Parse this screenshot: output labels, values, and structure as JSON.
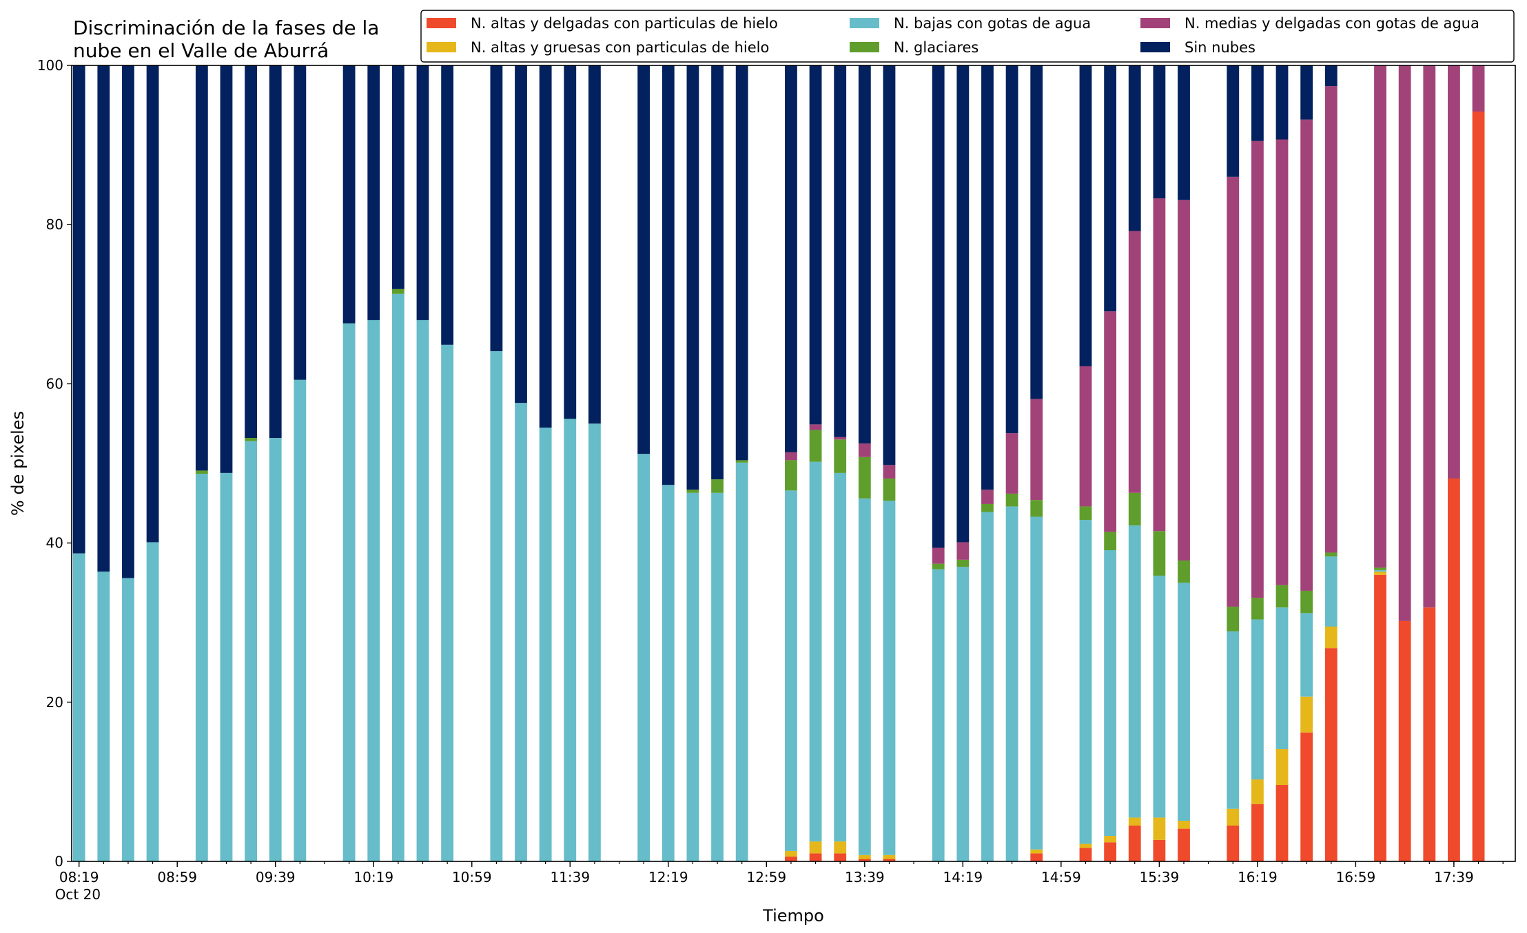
{
  "chart_data": {
    "type": "bar",
    "stacked": true,
    "title_lines": [
      "Discriminación de la fases de la",
      "nube en el Valle de Aburrá"
    ],
    "xlabel": "Tiempo",
    "ylabel": "% de pixeles",
    "ylim": [
      0,
      100
    ],
    "yticks": [
      0,
      20,
      40,
      60,
      80,
      100
    ],
    "x_range": [
      "08:16",
      "18:04"
    ],
    "xtick_labels": [
      {
        "time": "08:19",
        "label": "08:19",
        "sublabel": "Oct 20"
      },
      {
        "time": "08:59",
        "label": "08:59"
      },
      {
        "time": "09:39",
        "label": "09:39"
      },
      {
        "time": "10:19",
        "label": "10:19"
      },
      {
        "time": "10:59",
        "label": "10:59"
      },
      {
        "time": "11:39",
        "label": "11:39"
      },
      {
        "time": "12:19",
        "label": "12:19"
      },
      {
        "time": "12:59",
        "label": "12:59"
      },
      {
        "time": "13:39",
        "label": "13:39"
      },
      {
        "time": "14:19",
        "label": "14:19"
      },
      {
        "time": "14:59",
        "label": "14:59"
      },
      {
        "time": "15:39",
        "label": "15:39"
      },
      {
        "time": "16:19",
        "label": "16:19"
      },
      {
        "time": "16:59",
        "label": "16:59"
      },
      {
        "time": "17:39",
        "label": "17:39"
      }
    ],
    "minor_tick_interval_minutes": 10,
    "grid": false,
    "legend": {
      "placement": "top-right",
      "columns": 3
    },
    "x": [
      "08:19",
      "08:29",
      "08:39",
      "08:49",
      "08:59",
      "09:09",
      "09:19",
      "09:29",
      "09:39",
      "09:49",
      "09:59",
      "10:09",
      "10:19",
      "10:29",
      "10:39",
      "10:49",
      "10:59",
      "11:09",
      "11:19",
      "11:29",
      "11:39",
      "11:49",
      "11:59",
      "12:09",
      "12:19",
      "12:29",
      "12:39",
      "12:49",
      "12:59",
      "13:09",
      "13:19",
      "13:29",
      "13:39",
      "13:49",
      "13:59",
      "14:09",
      "14:19",
      "14:29",
      "14:39",
      "14:49",
      "14:59",
      "15:09",
      "15:19",
      "15:29",
      "15:39",
      "15:49",
      "15:59",
      "16:09",
      "16:19",
      "16:29",
      "16:39",
      "16:49",
      "16:59",
      "17:09",
      "17:19",
      "17:29",
      "17:39",
      "17:49"
    ],
    "series": [
      {
        "name": "N. altas y delgadas con particulas de hielo",
        "color": "#ef4a2b",
        "values": [
          null,
          null,
          null,
          null,
          null,
          null,
          null,
          null,
          null,
          null,
          null,
          null,
          null,
          null,
          null,
          null,
          null,
          null,
          null,
          null,
          null,
          null,
          null,
          null,
          null,
          null,
          null,
          null,
          null,
          0.6,
          1.0,
          1.0,
          0.3,
          0.3,
          null,
          null,
          null,
          null,
          null,
          1.0,
          null,
          1.7,
          2.4,
          4.5,
          2.7,
          4.1,
          null,
          4.5,
          7.2,
          9.6,
          16.2,
          26.8,
          null,
          36.0,
          30.2,
          31.9,
          48.1,
          94.2
        ]
      },
      {
        "name": "N. altas y gruesas con particulas de hielo",
        "color": "#e5b71a",
        "values": [
          null,
          null,
          null,
          null,
          null,
          null,
          null,
          null,
          null,
          null,
          null,
          null,
          null,
          null,
          null,
          null,
          null,
          null,
          null,
          null,
          null,
          null,
          null,
          null,
          null,
          null,
          null,
          null,
          null,
          0.7,
          1.5,
          1.5,
          0.5,
          0.5,
          null,
          null,
          null,
          null,
          null,
          0.5,
          null,
          0.5,
          0.8,
          1.0,
          2.8,
          1.0,
          null,
          2.1,
          3.1,
          4.5,
          4.5,
          2.7,
          null,
          0.4,
          0,
          0,
          0,
          0
        ]
      },
      {
        "name": "N. bajas con gotas de agua",
        "color": "#66bcc8",
        "values": [
          38.7,
          36.4,
          35.6,
          40.1,
          null,
          48.7,
          48.8,
          52.8,
          53.2,
          60.5,
          null,
          67.6,
          68.0,
          71.3,
          68.0,
          64.9,
          null,
          64.1,
          57.6,
          54.5,
          55.6,
          55.0,
          null,
          51.2,
          47.3,
          46.3,
          46.3,
          50.1,
          null,
          45.3,
          47.7,
          46.3,
          44.8,
          44.5,
          null,
          36.7,
          37.0,
          43.9,
          44.6,
          41.8,
          null,
          40.7,
          35.9,
          36.7,
          30.4,
          29.9,
          null,
          22.3,
          20.1,
          17.8,
          10.5,
          8.8,
          null,
          0.2,
          0,
          0,
          0,
          0
        ]
      },
      {
        "name": "N. glaciares",
        "color": "#5f9e2c",
        "values": [
          0,
          0,
          0,
          0,
          null,
          0.4,
          0,
          0.4,
          0,
          0,
          null,
          0,
          0,
          0.6,
          0,
          0,
          null,
          0,
          0,
          0,
          0,
          0,
          null,
          0,
          0,
          0.4,
          1.7,
          0.3,
          null,
          3.8,
          4.0,
          4.2,
          5.2,
          2.8,
          null,
          0.7,
          0.9,
          1.0,
          1.6,
          2.1,
          null,
          1.7,
          2.3,
          4.1,
          5.6,
          2.8,
          null,
          3.1,
          2.7,
          2.8,
          2.8,
          0.5,
          null,
          0.3,
          0,
          0,
          0,
          0
        ]
      },
      {
        "name": "N. medias y delgadas con gotas de agua",
        "color": "#a14378",
        "values": [
          0,
          0,
          0,
          0,
          null,
          0,
          0,
          0,
          0,
          0,
          null,
          0,
          0,
          0,
          0,
          0,
          null,
          0,
          0,
          0,
          0,
          0,
          null,
          0,
          0,
          0,
          0,
          0,
          null,
          1.0,
          0.7,
          0.3,
          1.7,
          1.7,
          null,
          2.0,
          2.2,
          1.8,
          7.6,
          12.7,
          null,
          17.6,
          27.7,
          32.9,
          41.8,
          45.3,
          null,
          54.0,
          57.4,
          56.0,
          59.2,
          58.6,
          null,
          63.1,
          69.8,
          68.1,
          51.9,
          5.8
        ]
      },
      {
        "name": "Sin nubes",
        "color": "#03215e",
        "values": [
          61.3,
          63.6,
          64.4,
          59.9,
          null,
          50.9,
          51.2,
          46.8,
          46.8,
          39.5,
          null,
          32.4,
          32.0,
          28.1,
          32.0,
          35.1,
          null,
          35.9,
          42.4,
          45.5,
          44.4,
          45.0,
          null,
          48.8,
          52.7,
          53.3,
          52.0,
          49.6,
          null,
          48.6,
          45.1,
          46.7,
          47.5,
          50.2,
          null,
          60.6,
          59.9,
          53.3,
          46.2,
          41.9,
          null,
          37.8,
          30.9,
          20.8,
          16.7,
          16.9,
          null,
          14.0,
          9.5,
          9.3,
          6.8,
          2.6,
          null,
          0,
          0,
          0,
          0,
          0
        ]
      }
    ]
  }
}
